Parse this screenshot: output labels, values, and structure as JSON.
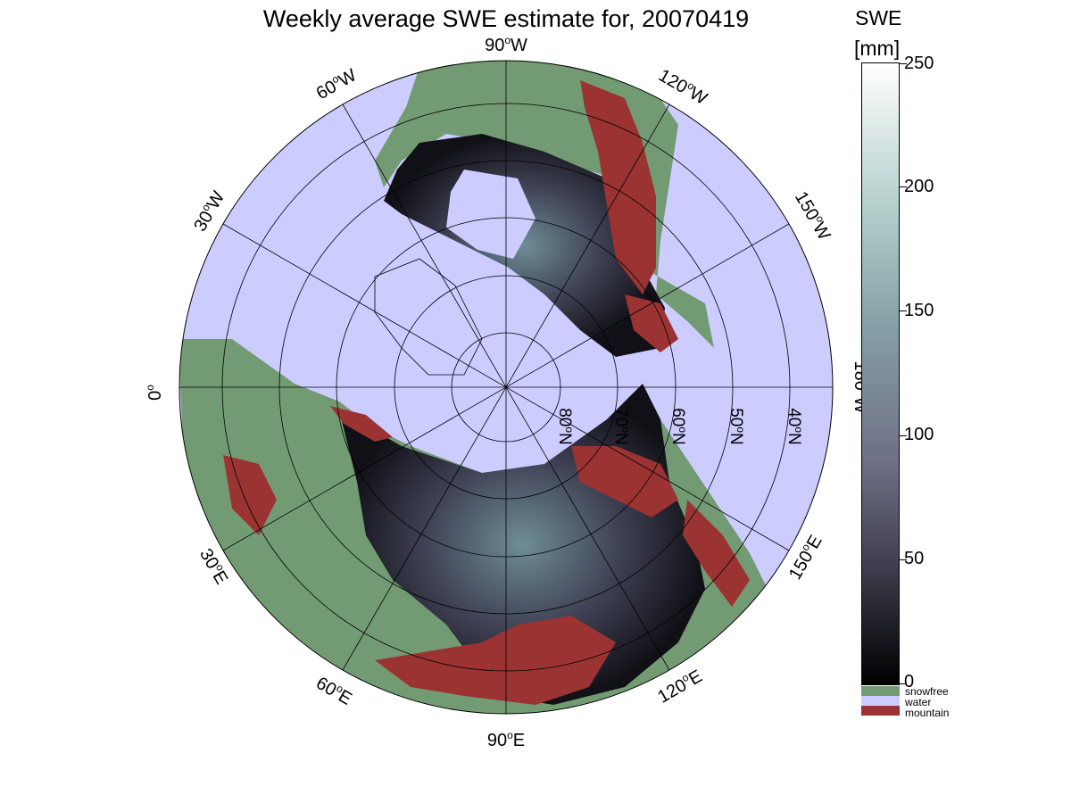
{
  "title": "Weekly average SWE estimate for, 20070419",
  "map": {
    "projection": "north-polar-stereographic",
    "colors": {
      "water": "#ccccff",
      "snowfree": "#739b73",
      "mountain": "#9b3333",
      "frame": "#000000"
    },
    "longitude_labels": [
      {
        "deg": "90",
        "dir": "W"
      },
      {
        "deg": "120",
        "dir": "W"
      },
      {
        "deg": "150",
        "dir": "W"
      },
      {
        "deg": "180",
        "dir": "W"
      },
      {
        "deg": "150",
        "dir": "E"
      },
      {
        "deg": "120",
        "dir": "E"
      },
      {
        "deg": "90",
        "dir": "E"
      },
      {
        "deg": "60",
        "dir": "E"
      },
      {
        "deg": "30",
        "dir": "E"
      },
      {
        "deg": "0",
        "dir": ""
      },
      {
        "deg": "30",
        "dir": "W"
      },
      {
        "deg": "60",
        "dir": "W"
      }
    ],
    "latitude_labels": [
      {
        "deg": "80",
        "dir": "N"
      },
      {
        "deg": "70",
        "dir": "N"
      },
      {
        "deg": "60",
        "dir": "N"
      },
      {
        "deg": "50",
        "dir": "N"
      },
      {
        "deg": "40",
        "dir": "N"
      }
    ]
  },
  "colorbar": {
    "title_line1": "SWE",
    "title_line2": "[mm]",
    "min": 0,
    "max": 250,
    "ticks": [
      "0",
      "50",
      "100",
      "150",
      "200",
      "250"
    ]
  },
  "legend": {
    "snowfree": "snowfree",
    "water": "water",
    "mountain": "mountain"
  }
}
